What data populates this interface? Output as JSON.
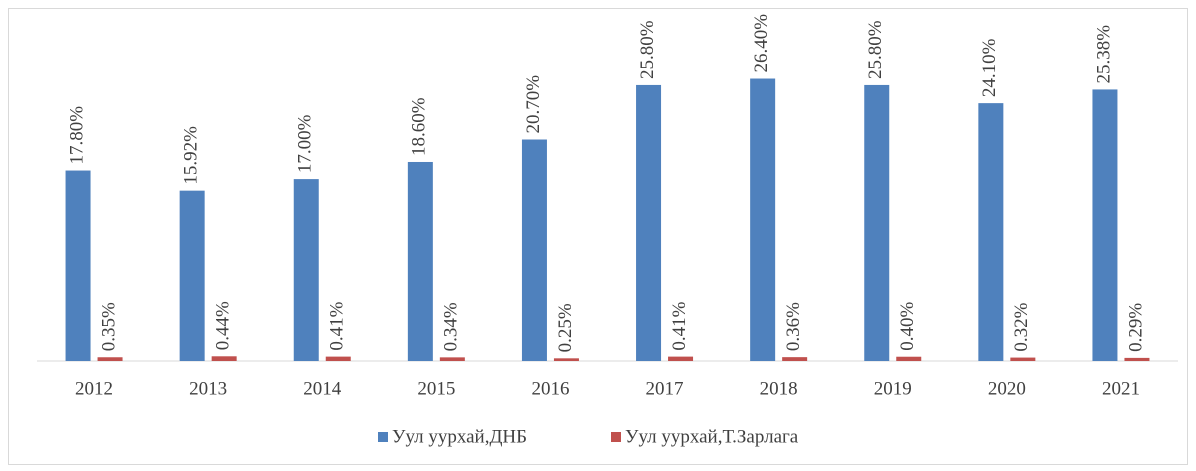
{
  "chart_data": {
    "type": "bar",
    "categories": [
      "2012",
      "2013",
      "2014",
      "2015",
      "2016",
      "2017",
      "2018",
      "2019",
      "2020",
      "2021"
    ],
    "series": [
      {
        "name": "Уул уурхай,ДНБ",
        "color": "#4f81bd",
        "values": [
          17.8,
          15.92,
          17.0,
          18.6,
          20.7,
          25.8,
          26.4,
          25.8,
          24.1,
          25.38
        ],
        "value_labels": [
          "17.80%",
          "15.92%",
          "17.00%",
          "18.60%",
          "20.70%",
          "25.80%",
          "26.40%",
          "25.80%",
          "24.10%",
          "25.38%"
        ]
      },
      {
        "name": "Уул уурхай,Т.Зарлага",
        "color": "#c0504d",
        "values": [
          0.35,
          0.44,
          0.41,
          0.34,
          0.25,
          0.41,
          0.36,
          0.4,
          0.32,
          0.29
        ],
        "value_labels": [
          "0.35%",
          "0.44%",
          "0.41%",
          "0.34%",
          "0.25%",
          "0.41%",
          "0.36%",
          "0.40%",
          "0.32%",
          "0.29%"
        ]
      }
    ],
    "ylim": [
      0,
      30
    ],
    "legend": "bottom"
  }
}
